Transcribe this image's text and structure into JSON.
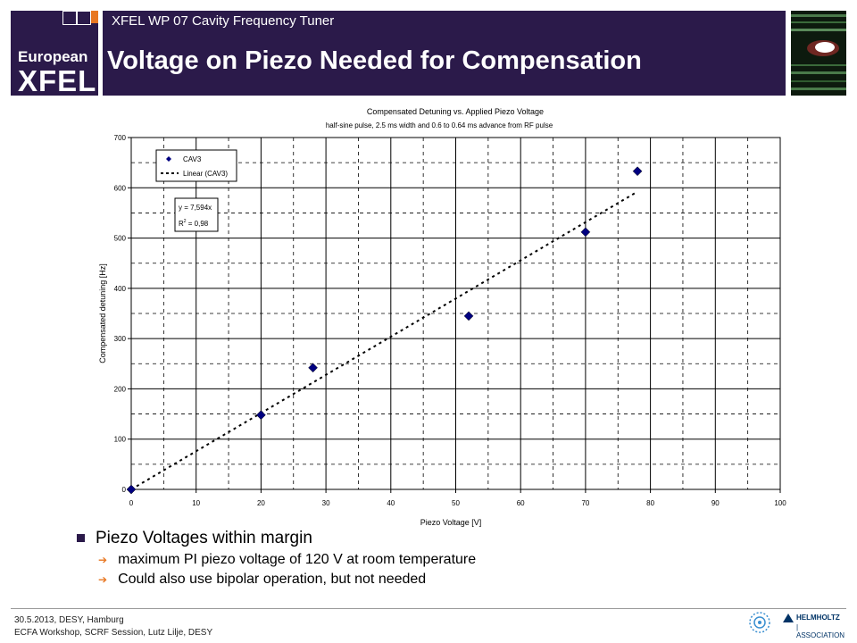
{
  "header": {
    "logo_line1": "European",
    "logo_line2": "XFEL",
    "subtitle": "XFEL WP 07 Cavity Frequency Tuner",
    "title": "Voltage on Piezo Needed for Compensation"
  },
  "colors": {
    "brand": "#2b1a4a",
    "orange": "#e87722",
    "marker": "#000080"
  },
  "chart_data": {
    "type": "scatter",
    "title": "Compensated Detuning vs. Applied Piezo Voltage",
    "subtitle": "half-sine pulse, 2.5 ms width and 0.6 to 0.64 ms advance from RF pulse",
    "xlabel": "Piezo Voltage [V]",
    "ylabel": "Compensated detuning [Hz]",
    "xlim": [
      0,
      100
    ],
    "ylim": [
      0,
      700
    ],
    "xticks": [
      0,
      10,
      20,
      30,
      40,
      50,
      60,
      70,
      80,
      90,
      100
    ],
    "yticks": [
      0,
      100,
      200,
      300,
      400,
      500,
      600,
      700
    ],
    "grid": true,
    "legend_position": "top-left",
    "series": [
      {
        "name": "CAV3",
        "type": "scatter",
        "x": [
          0,
          20,
          28,
          52,
          70,
          78
        ],
        "y": [
          0,
          148,
          242,
          345,
          512,
          633
        ]
      },
      {
        "name": "Linear (CAV3)",
        "type": "line",
        "slope": 7.594,
        "x_range": [
          0,
          78
        ]
      }
    ],
    "annotation_eq": "y = 7,594x",
    "annotation_r2_prefix": "R",
    "annotation_r2_exp": "2",
    "annotation_r2_value": " = 0,98"
  },
  "bullets": {
    "main": "Piezo Voltages within margin",
    "subs": [
      "maximum PI piezo voltage of 120 V at room temperature",
      "Could also use bipolar operation, but not needed"
    ]
  },
  "footer": {
    "line1": "30.5.2013, DESY, Hamburg",
    "line2": "ECFA Workshop, SCRF Session, Lutz Lilje, DESY",
    "helmholtz1": "HELMHOLTZ",
    "helmholtz2": "| ASSOCIATION"
  }
}
